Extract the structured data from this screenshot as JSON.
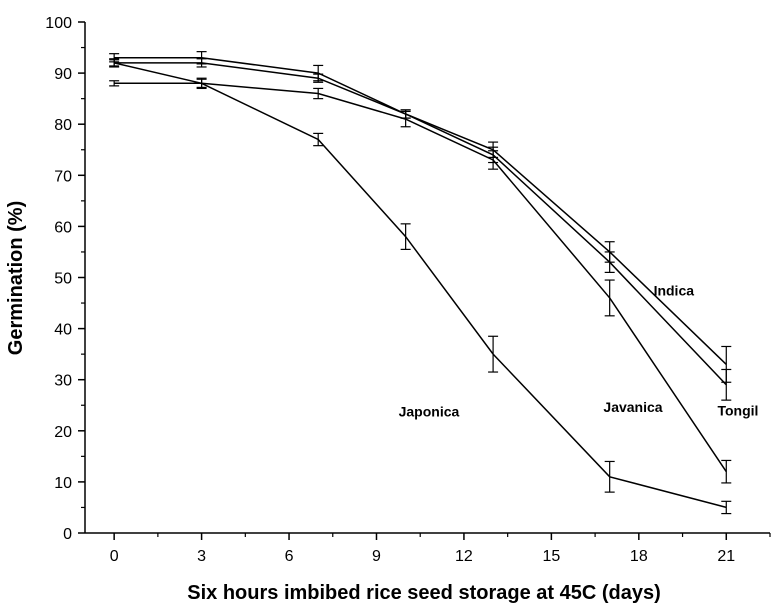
{
  "chart_data": {
    "type": "line",
    "title": "",
    "xlabel": "Six hours imbibed rice seed storage at 45C (days)",
    "ylabel": "Germination (%)",
    "xlim": [
      -1,
      22.5
    ],
    "ylim": [
      0,
      100
    ],
    "xticks": [
      0,
      3,
      6,
      9,
      12,
      15,
      18,
      21
    ],
    "yticks": [
      0,
      10,
      20,
      30,
      40,
      50,
      60,
      70,
      80,
      90,
      100
    ],
    "grid": false,
    "legend": "none",
    "line_color": "#000000",
    "x": [
      0,
      3,
      7,
      10,
      13,
      17,
      21
    ],
    "series": [
      {
        "name": "Indica",
        "values": [
          93,
          93,
          90,
          82,
          75,
          55,
          33
        ],
        "errors": [
          0.8,
          1.2,
          1.5,
          0.8,
          1.5,
          2,
          3.5
        ]
      },
      {
        "name": "Tongil",
        "values": [
          92,
          92,
          89,
          82,
          74,
          53,
          29
        ],
        "errors": [
          0.8,
          0.8,
          0.8,
          0.8,
          1.5,
          2,
          3
        ]
      },
      {
        "name": "Javanica",
        "values": [
          88,
          88,
          86,
          81,
          73,
          46,
          12
        ],
        "errors": [
          0.5,
          1,
          1,
          1.5,
          1.8,
          3.5,
          2.2
        ]
      },
      {
        "name": "Japonica",
        "values": [
          92,
          88,
          77,
          58,
          35,
          11,
          5
        ],
        "errors": [
          0.6,
          0.8,
          1.2,
          2.5,
          3.5,
          3,
          1.2
        ]
      }
    ]
  }
}
